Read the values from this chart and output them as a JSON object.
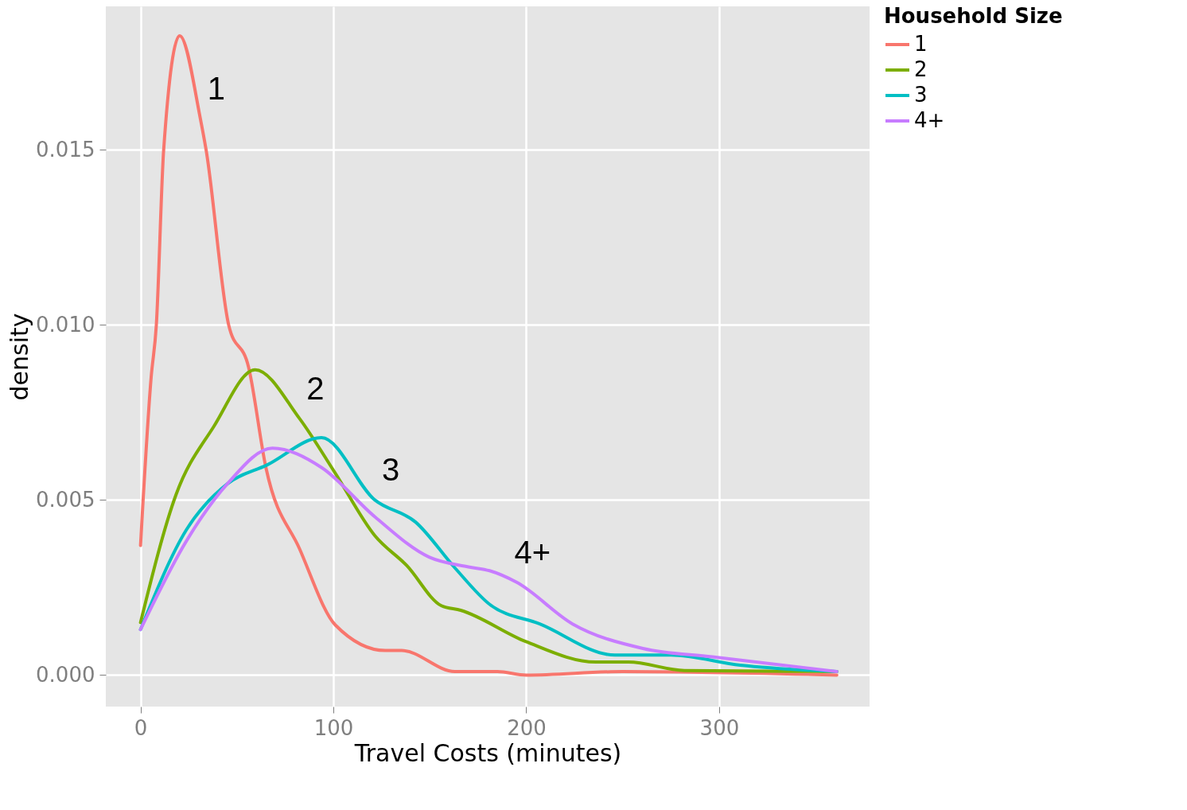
{
  "chart_data": {
    "type": "line",
    "xlabel": "Travel Costs (minutes)",
    "ylabel": "density",
    "legend_title": "Household Size",
    "legend": "right",
    "grid": true,
    "xlim": [
      -18,
      378
    ],
    "xticks": [
      0,
      100,
      200,
      300
    ],
    "ylim": [
      -0.0009,
      0.0191
    ],
    "yticks": [
      {
        "value": 0,
        "label": "0.000"
      },
      {
        "value": 0.005,
        "label": "0.005"
      },
      {
        "value": 0.01,
        "label": "0.010"
      },
      {
        "value": 0.015,
        "label": "0.015"
      }
    ],
    "series": [
      {
        "name": "1",
        "color": "#f8766d",
        "x": [
          0,
          5.5,
          8.2,
          12,
          20.3,
          31,
          34,
          45.7,
          56,
          65,
          82.5,
          101,
          127,
          135.5,
          163,
          185,
          200,
          250,
          361
        ],
        "values": [
          0.0037,
          0.0085,
          0.01,
          0.015,
          0.01826,
          0.0159,
          0.015,
          0.01,
          0.0088,
          0.00593,
          0.0036,
          0.00143,
          0.0007,
          0.0007,
          0.0001,
          0.0001,
          0,
          0.0001,
          0
        ]
      },
      {
        "name": "2",
        "color": "#7cae00",
        "x": [
          0,
          18.4,
          38,
          59.4,
          82.4,
          100.8,
          121.5,
          138,
          156,
          166,
          199.6,
          236,
          253,
          282,
          361
        ],
        "values": [
          0.0015,
          0.00515,
          0.0071,
          0.00872,
          0.00733,
          0.00578,
          0.00398,
          0.00313,
          0.00198,
          0.00185,
          0.00096,
          0.00037,
          0.00037,
          0.00013,
          0.0001
        ]
      },
      {
        "name": "3",
        "color": "#00bfc4",
        "x": [
          0,
          23.8,
          45,
          65.6,
          93.8,
          121.5,
          142.6,
          163,
          181,
          207,
          246,
          275,
          311,
          361
        ],
        "values": [
          0.0013,
          0.00415,
          0.00546,
          0.006,
          0.00678,
          0.005,
          0.00437,
          0.00306,
          0.00202,
          0.00146,
          0.00057,
          0.00057,
          0.00028,
          0.0001
        ]
      },
      {
        "name": "4+",
        "color": "#c77cff",
        "x": [
          0,
          23.8,
          45,
          68.4,
          93.8,
          121.5,
          149.6,
          170,
          181,
          195,
          224,
          260.5,
          296.5,
          361
        ],
        "values": [
          0.0013,
          0.00383,
          0.00546,
          0.00648,
          0.00593,
          0.00452,
          0.00337,
          0.00309,
          0.00298,
          0.00265,
          0.00146,
          0.00076,
          0.00052,
          0.0001
        ]
      }
    ],
    "annotations": [
      {
        "text": "1",
        "x": 31,
        "y": 0.0159
      },
      {
        "text": "2",
        "x": 82.4,
        "y": 0.00733
      },
      {
        "text": "3",
        "x": 121.5,
        "y": 0.005
      },
      {
        "text": "4+",
        "x": 195,
        "y": 0.00265
      }
    ]
  }
}
